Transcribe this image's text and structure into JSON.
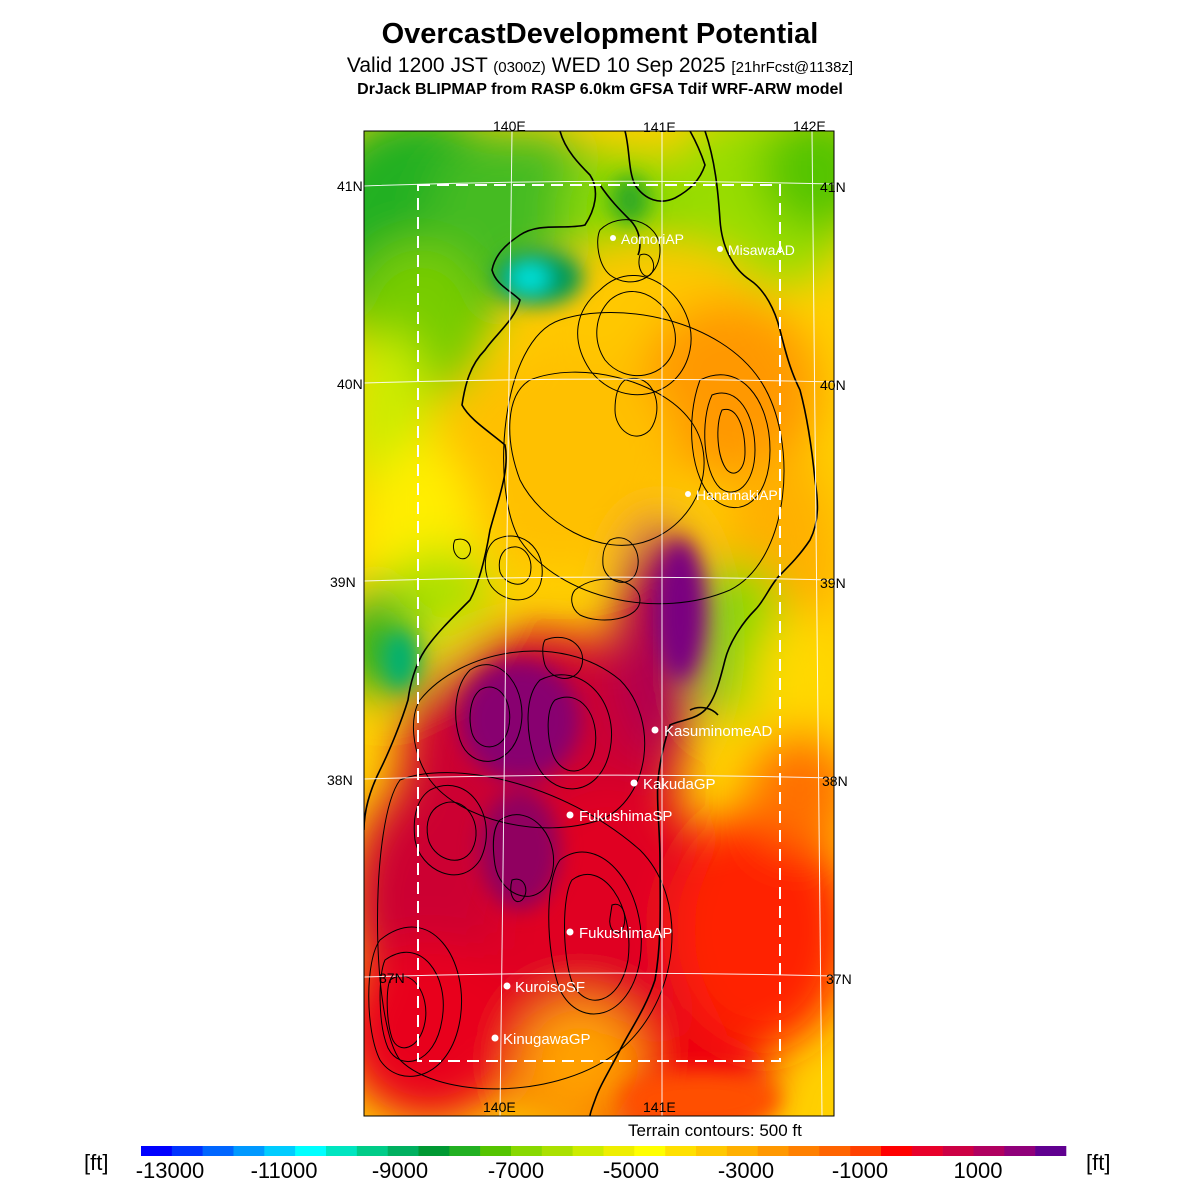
{
  "title": "OvercastDevelopment Potential",
  "subtitle": {
    "main_a": "Valid 1200 JST",
    "zulu": "(0300Z)",
    "main_b": "WED 10 Sep 2025",
    "forecast": "[21hrFcst@1138z]"
  },
  "model": "DrJack BLIPMAP from RASP 6.0km GFSA Tdif WRF-ARW model",
  "map": {
    "lon_labels_top": [
      "140E",
      "141E",
      "142E"
    ],
    "lon_labels_bottom": [
      "140E",
      "141E"
    ],
    "lat_labels_left": [
      "41N",
      "40N",
      "39N",
      "38N",
      "37N"
    ],
    "lat_labels_right": [
      "41N",
      "40N",
      "39N",
      "38N",
      "37N"
    ],
    "stations": [
      {
        "name": "AomoriAP"
      },
      {
        "name": "MisawaAD"
      },
      {
        "name": "HanamakiAP"
      },
      {
        "name": "KasuminomeAD"
      },
      {
        "name": "KakudaGP"
      },
      {
        "name": "FukushimaSP"
      },
      {
        "name": "FukushimaAP"
      },
      {
        "name": "KuroisoSF"
      },
      {
        "name": "KinugawaGP"
      }
    ]
  },
  "terrain_note": "Terrain contours: 500 ft",
  "colorbar": {
    "unit_left": "[ft]",
    "unit_right": "[ft]",
    "labels": [
      "-13000",
      "-11000",
      "-9000",
      "-7000",
      "-5000",
      "-3000",
      "-1000",
      "1000"
    ],
    "colors": [
      "#0000ff",
      "#0033ff",
      "#0066ff",
      "#0099ff",
      "#00ccff",
      "#00ffff",
      "#00e5c0",
      "#00cc88",
      "#00b060",
      "#009933",
      "#22b022",
      "#55c400",
      "#88d800",
      "#aae000",
      "#ccec00",
      "#eeee00",
      "#ffff00",
      "#ffe000",
      "#ffc800",
      "#ffb000",
      "#ff9800",
      "#ff8000",
      "#ff6400",
      "#ff4000",
      "#ff0000",
      "#e8002a",
      "#cc0044",
      "#b00060",
      "#90007a",
      "#600090"
    ]
  }
}
